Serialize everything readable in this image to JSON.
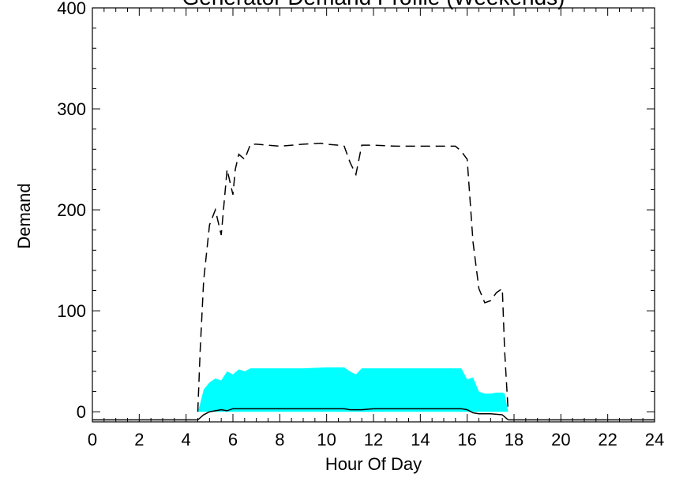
{
  "chart_data": {
    "type": "area",
    "title": "Generator Demand Profile (Weekends)",
    "xlabel": "Hour Of Day",
    "ylabel": "Demand",
    "xlim": [
      0,
      24
    ],
    "ylim": [
      -10,
      400
    ],
    "x_ticks": [
      0,
      2,
      4,
      6,
      8,
      10,
      12,
      14,
      16,
      18,
      20,
      22,
      24
    ],
    "y_ticks": [
      0,
      100,
      200,
      300,
      400
    ],
    "x_tick_labels": [
      "0",
      "2",
      "4",
      "6",
      "8",
      "10",
      "12",
      "14",
      "16",
      "18",
      "20",
      "22",
      "24"
    ],
    "y_tick_labels": [
      "0",
      "100",
      "200",
      "300",
      "400"
    ],
    "grid": false,
    "series": [
      {
        "style": "filled-area",
        "color": "#00ffff",
        "x": [
          4.5,
          4.6,
          4.75,
          5.0,
          5.25,
          5.5,
          5.75,
          6.0,
          6.25,
          6.5,
          6.75,
          7.0,
          8.0,
          9.0,
          10.0,
          10.75,
          11.0,
          11.25,
          11.5,
          12.0,
          13.0,
          14.0,
          15.0,
          15.5,
          15.75,
          16.0,
          16.25,
          16.5,
          16.75,
          17.0,
          17.25,
          17.5,
          17.6,
          17.75
        ],
        "values": [
          0,
          8,
          22,
          29,
          33,
          31,
          40,
          37,
          42,
          40,
          43,
          43,
          43,
          43,
          44,
          44,
          40,
          37,
          43,
          43,
          43,
          43,
          43,
          43,
          43,
          32,
          34,
          20,
          18,
          18,
          19,
          19,
          18,
          0
        ]
      },
      {
        "style": "dashed",
        "color": "#000000",
        "x": [
          4.5,
          4.6,
          4.75,
          5.0,
          5.25,
          5.35,
          5.5,
          5.75,
          6.0,
          6.1,
          6.25,
          6.5,
          6.75,
          7.0,
          8.0,
          9.0,
          9.75,
          10.0,
          10.5,
          10.75,
          11.0,
          11.25,
          11.5,
          12.0,
          13.0,
          14.0,
          15.0,
          15.5,
          15.75,
          16.0,
          16.25,
          16.5,
          16.75,
          17.0,
          17.25,
          17.5,
          17.6,
          17.75
        ],
        "values": [
          0,
          60,
          130,
          185,
          200,
          190,
          175,
          240,
          215,
          240,
          255,
          250,
          265,
          265,
          263,
          265,
          266,
          265,
          264,
          263,
          247,
          235,
          264,
          264,
          263,
          263,
          263,
          263,
          258,
          250,
          168,
          122,
          108,
          110,
          118,
          122,
          60,
          0
        ]
      },
      {
        "style": "solid",
        "color": "#000000",
        "x": [
          4.5,
          4.75,
          5.0,
          5.25,
          5.5,
          5.75,
          6.0,
          6.5,
          7.0,
          8.0,
          9.0,
          10.0,
          10.75,
          11.0,
          11.25,
          11.5,
          12.0,
          13.0,
          14.0,
          15.0,
          15.75,
          16.0,
          16.25,
          16.5,
          17.0,
          17.5,
          17.75
        ],
        "values": [
          -8,
          -3,
          0,
          1,
          2,
          1,
          3,
          3,
          3,
          3,
          3,
          3,
          3,
          2,
          2,
          2,
          3,
          3,
          3,
          3,
          3,
          2,
          -1,
          -2,
          -2,
          -3,
          -8
        ]
      }
    ]
  }
}
